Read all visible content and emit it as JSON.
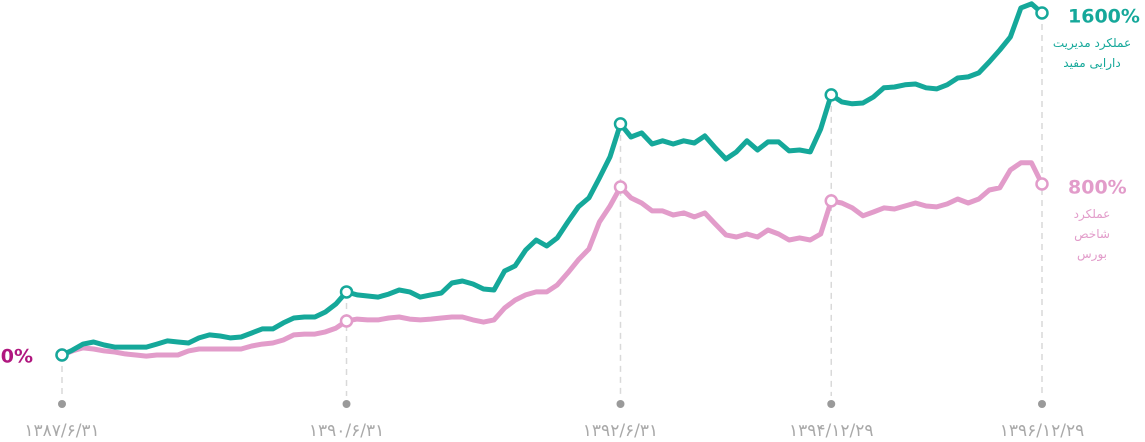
{
  "chart_data": {
    "type": "line",
    "categories": [
      "۱۳۸۷/۶/۳۱",
      null,
      null,
      null,
      null,
      null,
      null,
      null,
      null,
      null,
      null,
      null,
      null,
      null,
      null,
      null,
      null,
      null,
      null,
      null,
      null,
      null,
      null,
      null,
      null,
      null,
      null,
      "۱۳۹۰/۶/۳۱",
      null,
      null,
      null,
      null,
      null,
      null,
      null,
      null,
      null,
      null,
      null,
      null,
      null,
      null,
      null,
      null,
      null,
      null,
      null,
      null,
      null,
      null,
      null,
      null,
      null,
      "۱۳۹۲/۶/۳۱",
      null,
      null,
      null,
      null,
      null,
      null,
      null,
      null,
      null,
      null,
      null,
      null,
      null,
      null,
      null,
      null,
      null,
      null,
      null,
      "۱۳۹۴/۱۲/۲۹",
      null,
      null,
      null,
      null,
      null,
      null,
      null,
      null,
      null,
      null,
      null,
      null,
      null,
      null,
      null,
      null,
      null,
      null,
      null,
      "۱۳۹۶/۱۲/۲۹"
    ],
    "ylim": [
      0,
      1600
    ],
    "series": [
      {
        "name": "عملکرد مدیریت دارایی مفید",
        "color": "#15a89a",
        "values": [
          0,
          23,
          51,
          61,
          47,
          37,
          37,
          37,
          37,
          51,
          66,
          61,
          56,
          80,
          94,
          89,
          80,
          84,
          103,
          122,
          122,
          150,
          173,
          178,
          178,
          201,
          239,
          295,
          281,
          276,
          271,
          285,
          304,
          295,
          271,
          281,
          290,
          337,
          346,
          332,
          309,
          304,
          393,
          417,
          491,
          538,
          510,
          548,
          622,
          693,
          735,
          828,
          927,
          1081,
          1020,
          1039,
          987,
          1002,
          987,
          1002,
          992,
          1025,
          969,
          917,
          950,
          1002,
          959,
          997,
          997,
          955,
          959,
          950,
          1058,
          1217,
          1184,
          1175,
          1179,
          1207,
          1250,
          1254,
          1264,
          1268,
          1250,
          1245,
          1264,
          1296,
          1301,
          1320,
          1371,
          1427,
          1488,
          1624,
          1643,
          1600
        ],
        "value_labels": [
          null,
          null,
          null,
          null,
          null,
          null,
          null,
          null,
          null,
          null,
          null,
          null,
          null,
          null,
          null,
          null,
          null,
          null,
          null,
          null,
          null,
          null,
          null,
          null,
          null,
          null,
          null,
          null,
          null,
          null,
          null,
          null,
          null,
          null,
          null,
          null,
          null,
          null,
          null,
          null,
          null,
          null,
          null,
          null,
          null,
          null,
          null,
          null,
          null,
          null,
          null,
          null,
          null,
          null,
          null,
          null,
          null,
          null,
          null,
          null,
          null,
          null,
          null,
          null,
          null,
          null,
          null,
          null,
          null,
          null,
          null,
          null,
          null,
          null,
          null,
          null,
          null,
          null,
          null,
          null,
          null,
          null,
          null,
          null,
          null,
          null,
          null,
          null,
          null,
          null,
          null,
          null,
          null,
          "1600%"
        ]
      },
      {
        "name": "عملکرد شاخص بورس",
        "color": "#e29cca",
        "values": [
          0,
          19,
          33,
          28,
          19,
          14,
          5,
          0,
          -5,
          0,
          0,
          0,
          19,
          28,
          28,
          28,
          28,
          28,
          42,
          51,
          56,
          70,
          94,
          98,
          98,
          108,
          126,
          159,
          168,
          164,
          164,
          173,
          178,
          168,
          164,
          168,
          173,
          178,
          178,
          164,
          154,
          164,
          220,
          257,
          281,
          295,
          295,
          328,
          384,
          445,
          496,
          622,
          697,
          786,
          735,
          711,
          674,
          674,
          655,
          665,
          646,
          665,
          613,
          562,
          552,
          566,
          552,
          585,
          566,
          538,
          548,
          538,
          566,
          721,
          711,
          688,
          651,
          669,
          688,
          683,
          697,
          711,
          697,
          693,
          707,
          730,
          711,
          730,
          772,
          782,
          866,
          899,
          899,
          800
        ],
        "value_labels": [
          "0%",
          null,
          null,
          null,
          null,
          null,
          null,
          null,
          null,
          null,
          null,
          null,
          null,
          null,
          null,
          null,
          null,
          null,
          null,
          null,
          null,
          null,
          null,
          null,
          null,
          null,
          null,
          null,
          null,
          null,
          null,
          null,
          null,
          null,
          null,
          null,
          null,
          null,
          null,
          null,
          null,
          null,
          null,
          null,
          null,
          null,
          null,
          null,
          null,
          null,
          null,
          null,
          null,
          null,
          null,
          null,
          null,
          null,
          null,
          null,
          null,
          null,
          null,
          null,
          null,
          null,
          null,
          null,
          null,
          null,
          null,
          null,
          null,
          null,
          null,
          null,
          null,
          null,
          null,
          null,
          null,
          null,
          null,
          null,
          null,
          null,
          null,
          null,
          null,
          null,
          null,
          null,
          null,
          "800%"
        ]
      }
    ]
  }
}
